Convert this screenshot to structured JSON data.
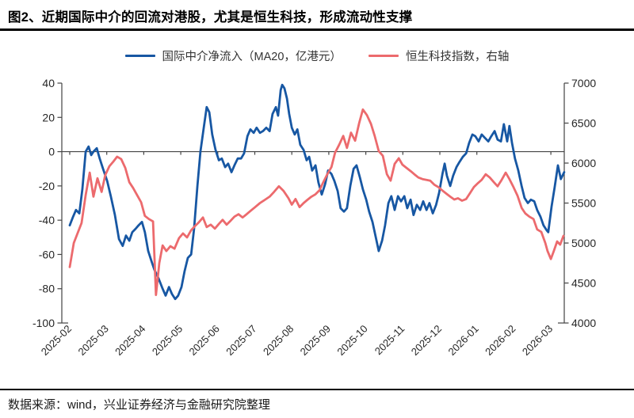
{
  "header": {
    "title": "图2、近期国际中介的回流对港股，尤其是恒生科技，形成流动性支撑"
  },
  "footer": {
    "text": "数据来源：wind，兴业证券经济与金融研究院整理"
  },
  "chart_data": {
    "type": "line",
    "title": "图2、近期国际中介的回流对港股，尤其是恒生科技，形成流动性支撑",
    "legend_position": "top",
    "grid": false,
    "zero_line": true,
    "x_tick_labels": [
      "2025-02",
      "2025-03",
      "2025-04",
      "2025-05",
      "2025-06",
      "2025-07",
      "2025-08",
      "2025-09",
      "2025-10",
      "2025-11",
      "2025-12",
      "2026-01",
      "2026-02",
      "2026-03"
    ],
    "left_axis": {
      "ticks": [
        40,
        20,
        0,
        -20,
        -40,
        -60,
        -80,
        -100
      ],
      "range": [
        -100,
        40
      ]
    },
    "right_axis": {
      "ticks": [
        7000,
        6500,
        6000,
        5500,
        5000,
        4500,
        4000
      ],
      "range": [
        4000,
        7000
      ]
    },
    "axis_color": "#444444",
    "series": [
      {
        "name": "国际中介净流入（MA20，亿港元）",
        "axis": "left",
        "color": "#1757a3",
        "points": [
          [
            0,
            -43
          ],
          [
            0.09,
            -38
          ],
          [
            0.17,
            -34
          ],
          [
            0.26,
            -36
          ],
          [
            0.34,
            -22
          ],
          [
            0.43,
            0
          ],
          [
            0.51,
            3
          ],
          [
            0.58,
            -2
          ],
          [
            0.64,
            0
          ],
          [
            0.73,
            2
          ],
          [
            0.81,
            -4
          ],
          [
            0.9,
            -10
          ],
          [
            1.01,
            -17
          ],
          [
            1.11,
            -26
          ],
          [
            1.22,
            -37
          ],
          [
            1.33,
            -51
          ],
          [
            1.43,
            -55
          ],
          [
            1.52,
            -49
          ],
          [
            1.61,
            -52
          ],
          [
            1.69,
            -47
          ],
          [
            1.78,
            -45
          ],
          [
            1.86,
            -43
          ],
          [
            1.95,
            -41
          ],
          [
            2.03,
            -47
          ],
          [
            2.12,
            -58
          ],
          [
            2.21,
            -64
          ],
          [
            2.29,
            -69
          ],
          [
            2.4,
            -74
          ],
          [
            2.51,
            -80
          ],
          [
            2.59,
            -84
          ],
          [
            2.68,
            -79
          ],
          [
            2.76,
            -83
          ],
          [
            2.85,
            -86
          ],
          [
            2.93,
            -84
          ],
          [
            3.02,
            -79
          ],
          [
            3.1,
            -70
          ],
          [
            3.19,
            -62
          ],
          [
            3.28,
            -60
          ],
          [
            3.36,
            -45
          ],
          [
            3.45,
            -20
          ],
          [
            3.53,
            0
          ],
          [
            3.62,
            14
          ],
          [
            3.7,
            26
          ],
          [
            3.77,
            23
          ],
          [
            3.85,
            10
          ],
          [
            3.94,
            1
          ],
          [
            4.03,
            -5
          ],
          [
            4.11,
            -4
          ],
          [
            4.2,
            -9
          ],
          [
            4.28,
            -7
          ],
          [
            4.37,
            -12
          ],
          [
            4.45,
            -8
          ],
          [
            4.54,
            -4
          ],
          [
            4.63,
            -4
          ],
          [
            4.71,
            -1
          ],
          [
            4.8,
            9
          ],
          [
            4.88,
            13
          ],
          [
            4.97,
            11
          ],
          [
            5.05,
            14
          ],
          [
            5.14,
            11
          ],
          [
            5.22,
            12
          ],
          [
            5.31,
            14
          ],
          [
            5.4,
            12
          ],
          [
            5.48,
            22
          ],
          [
            5.57,
            26
          ],
          [
            5.63,
            21
          ],
          [
            5.7,
            36
          ],
          [
            5.74,
            39
          ],
          [
            5.8,
            37
          ],
          [
            5.87,
            31
          ],
          [
            5.93,
            22
          ],
          [
            6,
            14
          ],
          [
            6.08,
            10
          ],
          [
            6.15,
            13
          ],
          [
            6.23,
            4
          ],
          [
            6.32,
            1
          ],
          [
            6.4,
            -5
          ],
          [
            6.47,
            -3
          ],
          [
            6.55,
            -11
          ],
          [
            6.64,
            -8
          ],
          [
            6.72,
            -18
          ],
          [
            6.81,
            -25
          ],
          [
            6.9,
            -19
          ],
          [
            6.98,
            -11
          ],
          [
            7.07,
            -13
          ],
          [
            7.15,
            -17
          ],
          [
            7.24,
            -23
          ],
          [
            7.32,
            -33
          ],
          [
            7.41,
            -35
          ],
          [
            7.49,
            -33
          ],
          [
            7.58,
            -20
          ],
          [
            7.67,
            -10
          ],
          [
            7.75,
            -8
          ],
          [
            7.84,
            -15
          ],
          [
            7.92,
            -22
          ],
          [
            8.01,
            -28
          ],
          [
            8.09,
            -35
          ],
          [
            8.18,
            -41
          ],
          [
            8.27,
            -50
          ],
          [
            8.35,
            -58
          ],
          [
            8.44,
            -52
          ],
          [
            8.52,
            -43
          ],
          [
            8.61,
            -30
          ],
          [
            8.69,
            -26
          ],
          [
            8.78,
            -34
          ],
          [
            8.87,
            -26
          ],
          [
            8.95,
            -29
          ],
          [
            9.04,
            -26
          ],
          [
            9.12,
            -33
          ],
          [
            9.21,
            -28
          ],
          [
            9.29,
            -37
          ],
          [
            9.38,
            -31
          ],
          [
            9.47,
            -34
          ],
          [
            9.55,
            -29
          ],
          [
            9.64,
            -34
          ],
          [
            9.72,
            -30
          ],
          [
            9.81,
            -36
          ],
          [
            9.9,
            -31
          ],
          [
            9.98,
            -24
          ],
          [
            10.07,
            -13
          ],
          [
            10.13,
            -7
          ],
          [
            10.19,
            -14
          ],
          [
            10.28,
            -20
          ],
          [
            10.36,
            -14
          ],
          [
            10.45,
            -9
          ],
          [
            10.53,
            -6
          ],
          [
            10.62,
            -3
          ],
          [
            10.71,
            -1
          ],
          [
            10.79,
            5
          ],
          [
            10.88,
            10
          ],
          [
            10.96,
            9
          ],
          [
            11.05,
            6
          ],
          [
            11.13,
            10
          ],
          [
            11.22,
            8
          ],
          [
            11.31,
            6
          ],
          [
            11.39,
            9
          ],
          [
            11.48,
            12
          ],
          [
            11.56,
            7
          ],
          [
            11.65,
            6
          ],
          [
            11.73,
            16
          ],
          [
            11.82,
            6
          ],
          [
            11.88,
            15
          ],
          [
            11.95,
            5
          ],
          [
            12.03,
            -4
          ],
          [
            12.12,
            -11
          ],
          [
            12.21,
            -20
          ],
          [
            12.29,
            -27
          ],
          [
            12.38,
            -30
          ],
          [
            12.46,
            -28
          ],
          [
            12.55,
            -29
          ],
          [
            12.63,
            -34
          ],
          [
            12.72,
            -38
          ],
          [
            12.8,
            -43
          ],
          [
            12.89,
            -46
          ],
          [
            12.93,
            -47
          ],
          [
            13.02,
            -32
          ],
          [
            13.1,
            -21
          ],
          [
            13.19,
            -8
          ],
          [
            13.27,
            -16
          ],
          [
            13.36,
            -12
          ]
        ]
      },
      {
        "name": "恒生科技指数，右轴",
        "axis": "right",
        "color": "#ec6a6d",
        "points": [
          [
            0,
            4700
          ],
          [
            0.11,
            5000
          ],
          [
            0.21,
            5120
          ],
          [
            0.32,
            5250
          ],
          [
            0.43,
            5600
          ],
          [
            0.54,
            5880
          ],
          [
            0.64,
            5580
          ],
          [
            0.75,
            5810
          ],
          [
            0.86,
            5640
          ],
          [
            0.96,
            5850
          ],
          [
            1.07,
            5960
          ],
          [
            1.18,
            6020
          ],
          [
            1.28,
            6080
          ],
          [
            1.39,
            6050
          ],
          [
            1.5,
            5940
          ],
          [
            1.61,
            5760
          ],
          [
            1.71,
            5690
          ],
          [
            1.82,
            5600
          ],
          [
            1.93,
            5510
          ],
          [
            2.03,
            5340
          ],
          [
            2.14,
            5300
          ],
          [
            2.25,
            5270
          ],
          [
            2.33,
            4350
          ],
          [
            2.42,
            4750
          ],
          [
            2.51,
            4970
          ],
          [
            2.61,
            4900
          ],
          [
            2.72,
            4960
          ],
          [
            2.83,
            4930
          ],
          [
            2.95,
            5060
          ],
          [
            3.06,
            5120
          ],
          [
            3.17,
            5070
          ],
          [
            3.28,
            5160
          ],
          [
            3.38,
            5210
          ],
          [
            3.49,
            5260
          ],
          [
            3.6,
            5320
          ],
          [
            3.7,
            5200
          ],
          [
            3.81,
            5230
          ],
          [
            3.92,
            5180
          ],
          [
            4.03,
            5240
          ],
          [
            4.13,
            5290
          ],
          [
            4.24,
            5230
          ],
          [
            4.35,
            5280
          ],
          [
            4.45,
            5330
          ],
          [
            4.56,
            5360
          ],
          [
            4.67,
            5320
          ],
          [
            4.78,
            5360
          ],
          [
            4.88,
            5400
          ],
          [
            5.01,
            5450
          ],
          [
            5.14,
            5500
          ],
          [
            5.27,
            5540
          ],
          [
            5.4,
            5580
          ],
          [
            5.52,
            5640
          ],
          [
            5.65,
            5710
          ],
          [
            5.78,
            5650
          ],
          [
            5.91,
            5560
          ],
          [
            6,
            5480
          ],
          [
            6.1,
            5550
          ],
          [
            6.21,
            5450
          ],
          [
            6.32,
            5500
          ],
          [
            6.42,
            5540
          ],
          [
            6.53,
            5580
          ],
          [
            6.64,
            5610
          ],
          [
            6.75,
            5660
          ],
          [
            6.85,
            5760
          ],
          [
            6.96,
            5860
          ],
          [
            7.07,
            5950
          ],
          [
            7.17,
            6130
          ],
          [
            7.28,
            6230
          ],
          [
            7.39,
            6340
          ],
          [
            7.49,
            6190
          ],
          [
            7.6,
            6380
          ],
          [
            7.71,
            6280
          ],
          [
            7.82,
            6500
          ],
          [
            7.92,
            6670
          ],
          [
            8.03,
            6600
          ],
          [
            8.14,
            6490
          ],
          [
            8.24,
            6340
          ],
          [
            8.35,
            6150
          ],
          [
            8.46,
            6090
          ],
          [
            8.57,
            5860
          ],
          [
            8.67,
            5780
          ],
          [
            8.78,
            5990
          ],
          [
            8.89,
            6060
          ],
          [
            8.99,
            5980
          ],
          [
            9.1,
            5940
          ],
          [
            9.21,
            5900
          ],
          [
            9.31,
            5860
          ],
          [
            9.42,
            5820
          ],
          [
            9.53,
            5800
          ],
          [
            9.64,
            5790
          ],
          [
            9.74,
            5780
          ],
          [
            9.85,
            5730
          ],
          [
            9.96,
            5700
          ],
          [
            10.06,
            5660
          ],
          [
            10.17,
            5620
          ],
          [
            10.28,
            5580
          ],
          [
            10.39,
            5545
          ],
          [
            10.49,
            5560
          ],
          [
            10.6,
            5530
          ],
          [
            10.71,
            5550
          ],
          [
            10.81,
            5620
          ],
          [
            10.92,
            5700
          ],
          [
            11.03,
            5750
          ],
          [
            11.13,
            5790
          ],
          [
            11.24,
            5860
          ],
          [
            11.35,
            5820
          ],
          [
            11.46,
            5760
          ],
          [
            11.56,
            5710
          ],
          [
            11.67,
            5790
          ],
          [
            11.78,
            5880
          ],
          [
            11.88,
            5800
          ],
          [
            11.99,
            5700
          ],
          [
            12.1,
            5590
          ],
          [
            12.21,
            5440
          ],
          [
            12.31,
            5370
          ],
          [
            12.42,
            5330
          ],
          [
            12.53,
            5300
          ],
          [
            12.63,
            5170
          ],
          [
            12.74,
            5140
          ],
          [
            12.85,
            5000
          ],
          [
            12.91,
            4900
          ],
          [
            13,
            4800
          ],
          [
            13.08,
            4900
          ],
          [
            13.17,
            5020
          ],
          [
            13.25,
            4980
          ],
          [
            13.34,
            5090
          ]
        ]
      }
    ]
  }
}
